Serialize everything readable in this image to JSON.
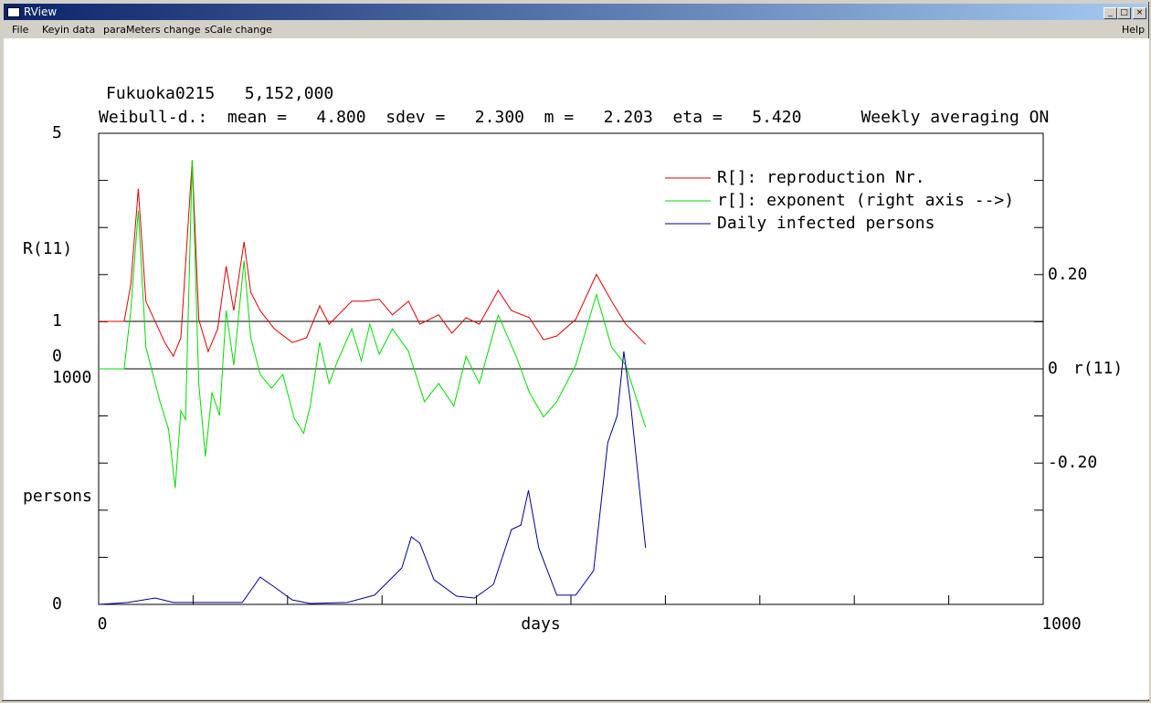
{
  "window": {
    "title": "RView"
  },
  "menu": [
    "File",
    "Keyin data",
    "paraMeters change",
    "sCale change",
    "Help"
  ],
  "chart_data": {
    "type": "line",
    "title": "Fukuoka0215   5,152,000",
    "subtitle": "Weibull-d.:  mean =   4.800  sdev =   2.300  m =   2.203  eta =   5.420      Weekly averaging ON",
    "xlabel": "days",
    "ylabel": "R(11)",
    "y2label": "r(11)",
    "y3label": "persons",
    "xlim": [
      0,
      1000
    ],
    "xticks": [
      0,
      1000
    ],
    "ylim": [
      0,
      5
    ],
    "yticks": [
      0,
      1,
      5
    ],
    "y2lim": [
      -0.5,
      0.5
    ],
    "y2ticks": [
      {
        "value": -0.2,
        "label": "-0.20"
      },
      0,
      {
        "value": 0.2,
        "label": "0.20"
      }
    ],
    "y3lim": [
      0,
      1000
    ],
    "y3ticks": [
      0,
      1000
    ],
    "reference_lines": [
      {
        "axis": "y",
        "value": 1
      },
      {
        "axis": "y2",
        "value": 0
      }
    ],
    "series": [
      {
        "name": "R[]: reproduction Nr.",
        "color": "#e00000",
        "axis": "y",
        "x": [
          0,
          27,
          34,
          42,
          50,
          70,
          79,
          87,
          99,
          106,
          116,
          126,
          135,
          143,
          154,
          161,
          171,
          186,
          205,
          220,
          234,
          244,
          268,
          282,
          297,
          311,
          328,
          340,
          360,
          374,
          389,
          403,
          423,
          437,
          456,
          471,
          485,
          505,
          527,
          543,
          558,
          579
        ],
        "values": [
          1.0,
          1.0,
          1.78,
          3.82,
          1.43,
          0.55,
          0.26,
          0.65,
          4.42,
          1.04,
          0.36,
          0.84,
          2.17,
          1.23,
          2.69,
          1.62,
          1.23,
          0.84,
          0.55,
          0.65,
          1.33,
          0.94,
          1.43,
          1.43,
          1.47,
          1.14,
          1.43,
          0.94,
          1.14,
          0.75,
          1.08,
          0.94,
          1.66,
          1.23,
          1.08,
          0.61,
          0.69,
          1.04,
          2.0,
          1.43,
          0.94,
          0.51
        ]
      },
      {
        "name": "r[]: exponent (right axis -->)",
        "color": "#00dd00",
        "axis": "y2",
        "x": [
          0,
          27,
          34,
          42,
          50,
          65,
          74,
          81,
          87,
          92,
          99,
          106,
          113,
          120,
          128,
          135,
          143,
          154,
          161,
          171,
          183,
          195,
          207,
          217,
          224,
          234,
          244,
          253,
          268,
          278,
          287,
          297,
          311,
          328,
          345,
          360,
          376,
          389,
          403,
          423,
          442,
          456,
          471,
          485,
          505,
          527,
          543,
          558,
          579
        ],
        "values": [
          0,
          0,
          0.124,
          0.336,
          0.046,
          -0.07,
          -0.128,
          -0.253,
          -0.089,
          -0.108,
          0.443,
          -0.031,
          -0.186,
          -0.05,
          -0.099,
          0.124,
          0.008,
          0.23,
          0.066,
          -0.012,
          -0.041,
          -0.012,
          -0.104,
          -0.137,
          -0.079,
          0.056,
          -0.031,
          0.017,
          0.085,
          0.017,
          0.095,
          0.031,
          0.085,
          0.037,
          -0.07,
          -0.031,
          -0.079,
          0.027,
          -0.031,
          0.114,
          0.027,
          -0.05,
          -0.102,
          -0.07,
          0.008,
          0.158,
          0.046,
          0.008,
          -0.124
        ]
      },
      {
        "name": "Daily infected persons",
        "color": "#000090",
        "axis": "y3",
        "x": [
          0,
          31,
          60,
          79,
          99,
          152,
          171,
          186,
          205,
          224,
          263,
          292,
          321,
          331,
          340,
          355,
          379,
          398,
          418,
          437,
          447,
          455,
          466,
          485,
          505,
          524,
          539,
          549,
          556,
          563,
          579
        ],
        "values": [
          0,
          8,
          27,
          8,
          8,
          8,
          116,
          74,
          19,
          4,
          8,
          39,
          155,
          287,
          260,
          105,
          35,
          27,
          85,
          318,
          337,
          484,
          240,
          39,
          39,
          143,
          686,
          802,
          1074,
          860,
          240
        ]
      }
    ]
  }
}
